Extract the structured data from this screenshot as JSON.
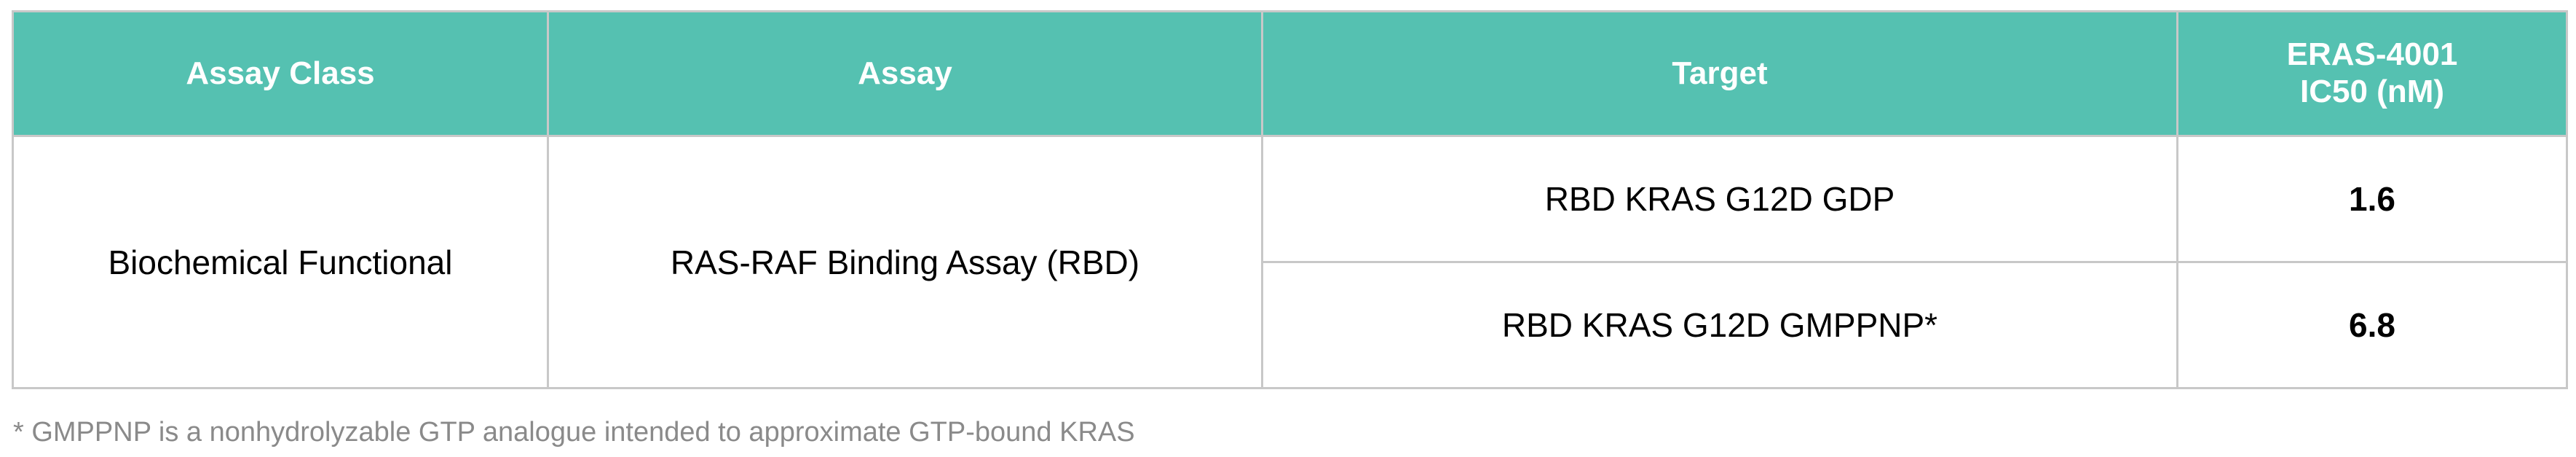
{
  "header_color": "#55c1b1",
  "table": {
    "headers": [
      "Assay Class",
      "Assay",
      "Target",
      "ERAS-4001",
      "IC50 (nM)"
    ],
    "assay_class": "Biochemical Functional",
    "assay": "RAS-RAF Binding Assay (RBD)",
    "rows": [
      {
        "target": "RBD KRAS G12D GDP",
        "ic50": "1.6"
      },
      {
        "target": "RBD KRAS G12D GMPPNP*",
        "ic50": "6.8"
      }
    ]
  },
  "footnote": "* GMPPNP is a nonhydrolyzable GTP analogue intended to approximate GTP-bound KRAS"
}
